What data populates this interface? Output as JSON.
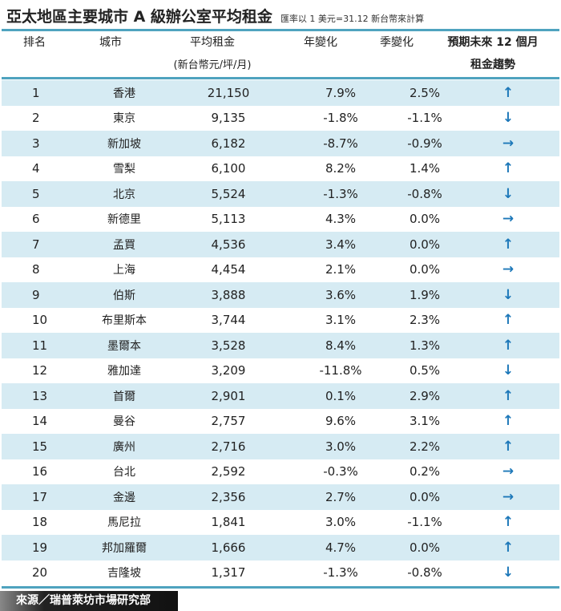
{
  "title": "亞太地區主要城市 A 級辦公室平均租金",
  "note": "匯率以 1 美元=31.12 新台幣來計算",
  "headers": {
    "rank": "排名",
    "city": "城市",
    "rent": "平均租金",
    "rent_unit": "(新台幣元/坪/月)",
    "yoy": "年變化",
    "qoq": "季變化",
    "trend1": "預期未來 12 個月",
    "trend2": "租金趨勢"
  },
  "rows": [
    {
      "rank": "1",
      "city": "香港",
      "rent": "21,150",
      "yoy": "7.9%",
      "qoq": "2.5%",
      "trend": "up"
    },
    {
      "rank": "2",
      "city": "東京",
      "rent": "9,135",
      "yoy": "-1.8%",
      "qoq": "-1.1%",
      "trend": "down"
    },
    {
      "rank": "3",
      "city": "新加坡",
      "rent": "6,182",
      "yoy": "-8.7%",
      "qoq": "-0.9%",
      "trend": "flat"
    },
    {
      "rank": "4",
      "city": "雪梨",
      "rent": "6,100",
      "yoy": "8.2%",
      "qoq": "1.4%",
      "trend": "up"
    },
    {
      "rank": "5",
      "city": "北京",
      "rent": "5,524",
      "yoy": "-1.3%",
      "qoq": "-0.8%",
      "trend": "down"
    },
    {
      "rank": "6",
      "city": "新德里",
      "rent": "5,113",
      "yoy": "4.3%",
      "qoq": "0.0%",
      "trend": "flat"
    },
    {
      "rank": "7",
      "city": "孟買",
      "rent": "4,536",
      "yoy": "3.4%",
      "qoq": "0.0%",
      "trend": "up"
    },
    {
      "rank": "8",
      "city": "上海",
      "rent": "4,454",
      "yoy": "2.1%",
      "qoq": "0.0%",
      "trend": "flat"
    },
    {
      "rank": "9",
      "city": "伯斯",
      "rent": "3,888",
      "yoy": "3.6%",
      "qoq": "1.9%",
      "trend": "down"
    },
    {
      "rank": "10",
      "city": "布里斯本",
      "rent": "3,744",
      "yoy": "3.1%",
      "qoq": "2.3%",
      "trend": "up"
    },
    {
      "rank": "11",
      "city": "墨爾本",
      "rent": "3,528",
      "yoy": "8.4%",
      "qoq": "1.3%",
      "trend": "up"
    },
    {
      "rank": "12",
      "city": "雅加達",
      "rent": "3,209",
      "yoy": "-11.8%",
      "qoq": "0.5%",
      "trend": "down"
    },
    {
      "rank": "13",
      "city": "首爾",
      "rent": "2,901",
      "yoy": "0.1%",
      "qoq": "2.9%",
      "trend": "up"
    },
    {
      "rank": "14",
      "city": "曼谷",
      "rent": "2,757",
      "yoy": "9.6%",
      "qoq": "3.1%",
      "trend": "up"
    },
    {
      "rank": "15",
      "city": "廣州",
      "rent": "2,716",
      "yoy": "3.0%",
      "qoq": "2.2%",
      "trend": "up"
    },
    {
      "rank": "16",
      "city": "台北",
      "rent": "2,592",
      "yoy": "-0.3%",
      "qoq": "0.2%",
      "trend": "flat"
    },
    {
      "rank": "17",
      "city": "金邊",
      "rent": "2,356",
      "yoy": "2.7%",
      "qoq": "0.0%",
      "trend": "flat"
    },
    {
      "rank": "18",
      "city": "馬尼拉",
      "rent": "1,841",
      "yoy": "3.0%",
      "qoq": "-1.1%",
      "trend": "up"
    },
    {
      "rank": "19",
      "city": "邦加羅爾",
      "rent": "1,666",
      "yoy": "4.7%",
      "qoq": "0.0%",
      "trend": "up"
    },
    {
      "rank": "20",
      "city": "吉隆坡",
      "rent": "1,317",
      "yoy": "-1.3%",
      "qoq": "-0.8%",
      "trend": "down"
    }
  ],
  "source": "來源／瑞普萊坊市場研究部",
  "colors": {
    "accent": "#4fa3bf",
    "row_alt": "#d6ebf3",
    "arrow": "#1d78b9"
  }
}
